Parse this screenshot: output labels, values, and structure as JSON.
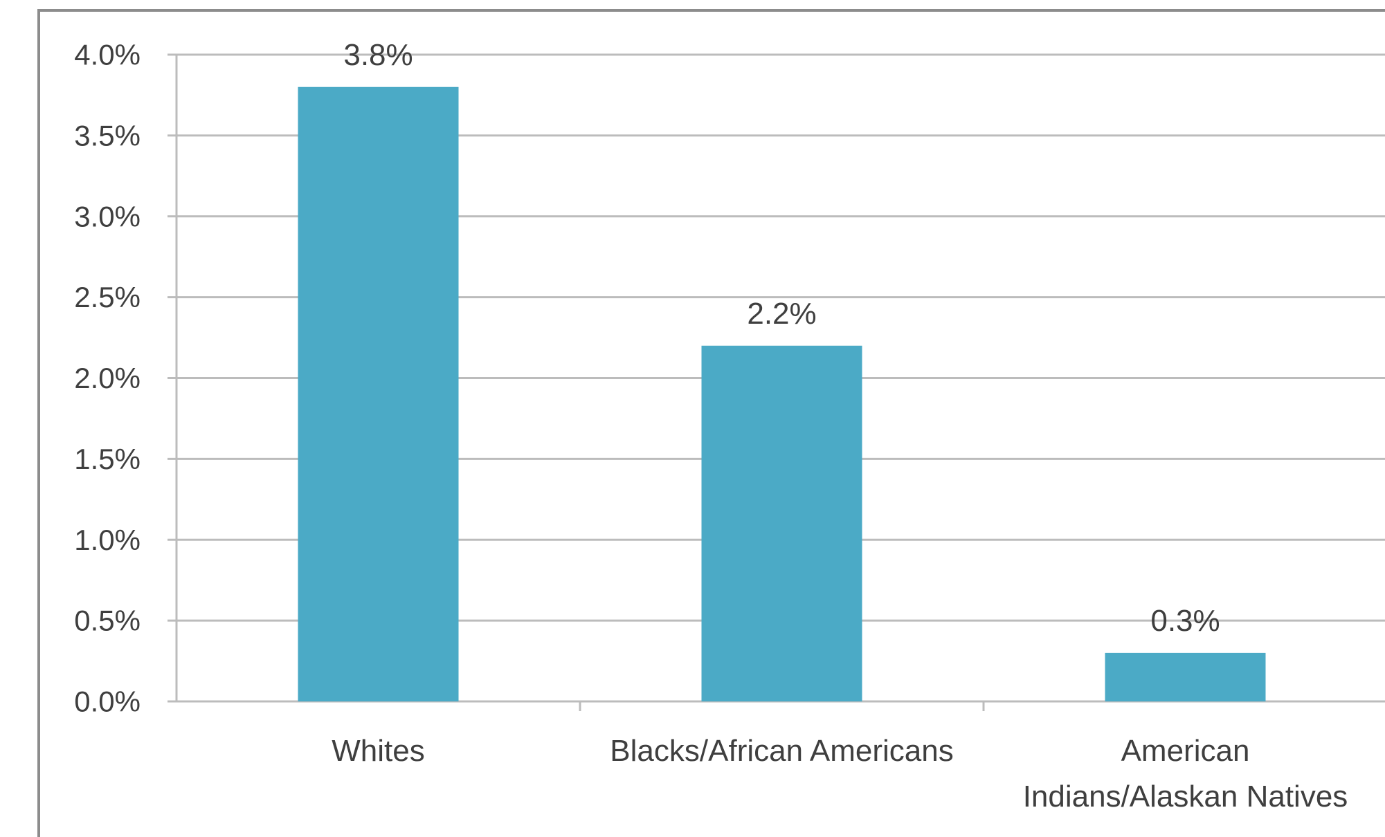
{
  "chart_data": {
    "type": "bar",
    "title": "",
    "xlabel": "",
    "ylabel": "",
    "categories": [
      [
        "Whites"
      ],
      [
        "Blacks/African Americans"
      ],
      [
        "American",
        "Indians/Alaskan Natives"
      ]
    ],
    "values": [
      3.8,
      2.2,
      0.3
    ],
    "data_labels": [
      "3.8%",
      "2.2%",
      "0.3%"
    ],
    "ylim": [
      0,
      4.0
    ],
    "yticks": [
      0,
      0.5,
      1.0,
      1.5,
      2.0,
      2.5,
      3.0,
      3.5,
      4.0
    ],
    "ytick_labels": [
      "0.0%",
      "0.5%",
      "1.0%",
      "1.5%",
      "2.0%",
      "2.5%",
      "3.0%",
      "3.5%",
      "4.0%"
    ],
    "grid": true,
    "legend": "none",
    "bar_color": "#4baac6",
    "grid_color": "#bcbcbc",
    "border_color": "#8c8c8c",
    "text_color": "#3f3f3f"
  }
}
